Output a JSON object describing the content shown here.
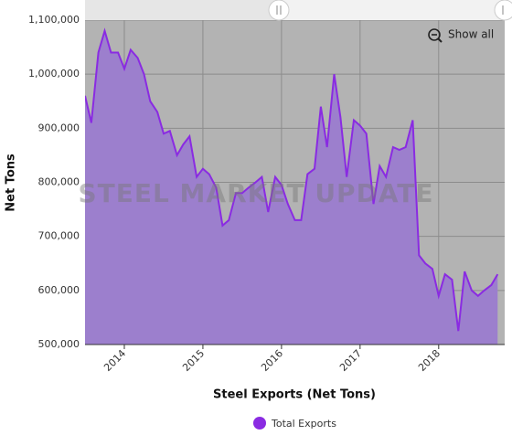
{
  "chart_data": {
    "type": "area",
    "y_axis_label": "Net Tons",
    "x_axis_label": "Steel Exports (Net Tons)",
    "watermark": "STEEL MARKET UPDATE",
    "button": "Show all",
    "xlim": [
      2013.5,
      2018.84
    ],
    "xticks": [
      2014,
      2015,
      2016,
      2017,
      2018
    ],
    "ylim": [
      500000,
      1100000
    ],
    "yticks": [
      {
        "value": 500000,
        "label": "500,000"
      },
      {
        "value": 600000,
        "label": "600,000"
      },
      {
        "value": 700000,
        "label": "700,000"
      },
      {
        "value": 800000,
        "label": "800,000"
      },
      {
        "value": 900000,
        "label": "900,000"
      },
      {
        "value": 1000000,
        "label": "1,000,000"
      },
      {
        "value": 1100000,
        "label": "1,100,000"
      }
    ],
    "grid": true,
    "legend": "bottom",
    "x": [
      2013.5,
      2013.58,
      2013.67,
      2013.75,
      2013.83,
      2013.92,
      2014,
      2014.08,
      2014.17,
      2014.25,
      2014.33,
      2014.42,
      2014.5,
      2014.58,
      2014.67,
      2014.75,
      2014.83,
      2014.92,
      2015,
      2015.08,
      2015.17,
      2015.25,
      2015.33,
      2015.42,
      2015.5,
      2015.58,
      2015.67,
      2015.75,
      2015.83,
      2015.92,
      2016,
      2016.08,
      2016.17,
      2016.25,
      2016.33,
      2016.42,
      2016.5,
      2016.58,
      2016.67,
      2016.75,
      2016.83,
      2016.92,
      2017,
      2017.08,
      2017.17,
      2017.25,
      2017.33,
      2017.42,
      2017.5,
      2017.58,
      2017.67,
      2017.75,
      2017.83,
      2017.92,
      2018,
      2018.08,
      2018.17,
      2018.25,
      2018.33,
      2018.42,
      2018.5,
      2018.58,
      2018.67,
      2018.75
    ],
    "series": [
      {
        "name": "Total Exports",
        "color": "#8a2be2",
        "fill": "#9c7fcd",
        "values": [
          960000,
          910000,
          1040000,
          1080000,
          1040000,
          1040000,
          1010000,
          1045000,
          1030000,
          1000000,
          950000,
          930000,
          890000,
          895000,
          850000,
          870000,
          885000,
          810000,
          825000,
          815000,
          790000,
          720000,
          730000,
          780000,
          780000,
          790000,
          800000,
          810000,
          745000,
          810000,
          795000,
          760000,
          730000,
          730000,
          815000,
          825000,
          940000,
          865000,
          1000000,
          920000,
          810000,
          915000,
          905000,
          890000,
          760000,
          830000,
          810000,
          865000,
          860000,
          865000,
          915000,
          665000,
          650000,
          640000,
          590000,
          630000,
          620000,
          525000,
          635000,
          600000,
          590000,
          600000,
          610000,
          630000
        ]
      }
    ]
  }
}
